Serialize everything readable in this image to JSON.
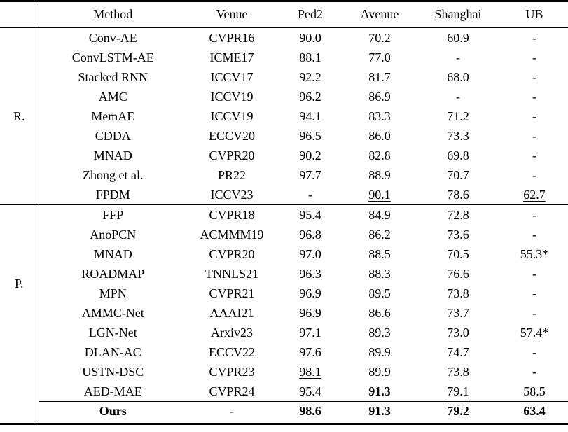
{
  "table": {
    "columns": [
      "Method",
      "Venue",
      "Ped2",
      "Avenue",
      "Shanghai",
      "UB"
    ],
    "groups": [
      {
        "label": "R.",
        "rows": [
          {
            "method": "Conv-AE",
            "venue": "CVPR16",
            "values": [
              "90.0",
              "70.2",
              "60.9",
              "-"
            ],
            "em": [
              "",
              "",
              "",
              ""
            ]
          },
          {
            "method": "ConvLSTM-AE",
            "venue": "ICME17",
            "values": [
              "88.1",
              "77.0",
              "-",
              "-"
            ],
            "em": [
              "",
              "",
              "",
              ""
            ]
          },
          {
            "method": "Stacked RNN",
            "venue": "ICCV17",
            "values": [
              "92.2",
              "81.7",
              "68.0",
              "-"
            ],
            "em": [
              "",
              "",
              "",
              ""
            ]
          },
          {
            "method": "AMC",
            "venue": "ICCV19",
            "values": [
              "96.2",
              "86.9",
              "-",
              "-"
            ],
            "em": [
              "",
              "",
              "",
              ""
            ]
          },
          {
            "method": "MemAE",
            "venue": "ICCV19",
            "values": [
              "94.1",
              "83.3",
              "71.2",
              "-"
            ],
            "em": [
              "",
              "",
              "",
              ""
            ]
          },
          {
            "method": "CDDA",
            "venue": "ECCV20",
            "values": [
              "96.5",
              "86.0",
              "73.3",
              "-"
            ],
            "em": [
              "",
              "",
              "",
              ""
            ]
          },
          {
            "method": "MNAD",
            "venue": "CVPR20",
            "values": [
              "90.2",
              "82.8",
              "69.8",
              "-"
            ],
            "em": [
              "",
              "",
              "",
              ""
            ]
          },
          {
            "method": "Zhong et al.",
            "venue": "PR22",
            "values": [
              "97.7",
              "88.9",
              "70.7",
              "-"
            ],
            "em": [
              "",
              "",
              "",
              ""
            ]
          },
          {
            "method": "FPDM",
            "venue": "ICCV23",
            "values": [
              "-",
              "90.1",
              "78.6",
              "62.7"
            ],
            "em": [
              "",
              "u",
              "",
              "u"
            ]
          }
        ]
      },
      {
        "label": "P.",
        "rows": [
          {
            "method": "FFP",
            "venue": "CVPR18",
            "values": [
              "95.4",
              "84.9",
              "72.8",
              "-"
            ],
            "em": [
              "",
              "",
              "",
              ""
            ]
          },
          {
            "method": "AnoPCN",
            "venue": "ACMMM19",
            "values": [
              "96.8",
              "86.2",
              "73.6",
              "-"
            ],
            "em": [
              "",
              "",
              "",
              ""
            ]
          },
          {
            "method": "MNAD",
            "venue": "CVPR20",
            "values": [
              "97.0",
              "88.5",
              "70.5",
              "55.3*"
            ],
            "em": [
              "",
              "",
              "",
              ""
            ]
          },
          {
            "method": "ROADMAP",
            "venue": "TNNLS21",
            "values": [
              "96.3",
              "88.3",
              "76.6",
              "-"
            ],
            "em": [
              "",
              "",
              "",
              ""
            ]
          },
          {
            "method": "MPN",
            "venue": "CVPR21",
            "values": [
              "96.9",
              "89.5",
              "73.8",
              "-"
            ],
            "em": [
              "",
              "",
              "",
              ""
            ]
          },
          {
            "method": "AMMC-Net",
            "venue": "AAAI21",
            "values": [
              "96.9",
              "86.6",
              "73.7",
              "-"
            ],
            "em": [
              "",
              "",
              "",
              ""
            ]
          },
          {
            "method": "LGN-Net",
            "venue": "Arxiv23",
            "values": [
              "97.1",
              "89.3",
              "73.0",
              "57.4*"
            ],
            "em": [
              "",
              "",
              "",
              ""
            ]
          },
          {
            "method": "DLAN-AC",
            "venue": "ECCV22",
            "values": [
              "97.6",
              "89.9",
              "74.7",
              "-"
            ],
            "em": [
              "",
              "",
              "",
              ""
            ]
          },
          {
            "method": "USTN-DSC",
            "venue": "CVPR23",
            "values": [
              "98.1",
              "89.9",
              "73.8",
              "-"
            ],
            "em": [
              "u",
              "",
              "",
              ""
            ]
          },
          {
            "method": "AED-MAE",
            "venue": "CVPR24",
            "values": [
              "95.4",
              "91.3",
              "79.1",
              "58.5"
            ],
            "em": [
              "",
              "b",
              "u",
              ""
            ]
          }
        ]
      }
    ],
    "footer": {
      "method": "Ours",
      "em_method": "b",
      "venue": "-",
      "values": [
        "98.6",
        "91.3",
        "79.2",
        "63.4"
      ],
      "em": [
        "b",
        "b",
        "b",
        "b"
      ]
    }
  }
}
